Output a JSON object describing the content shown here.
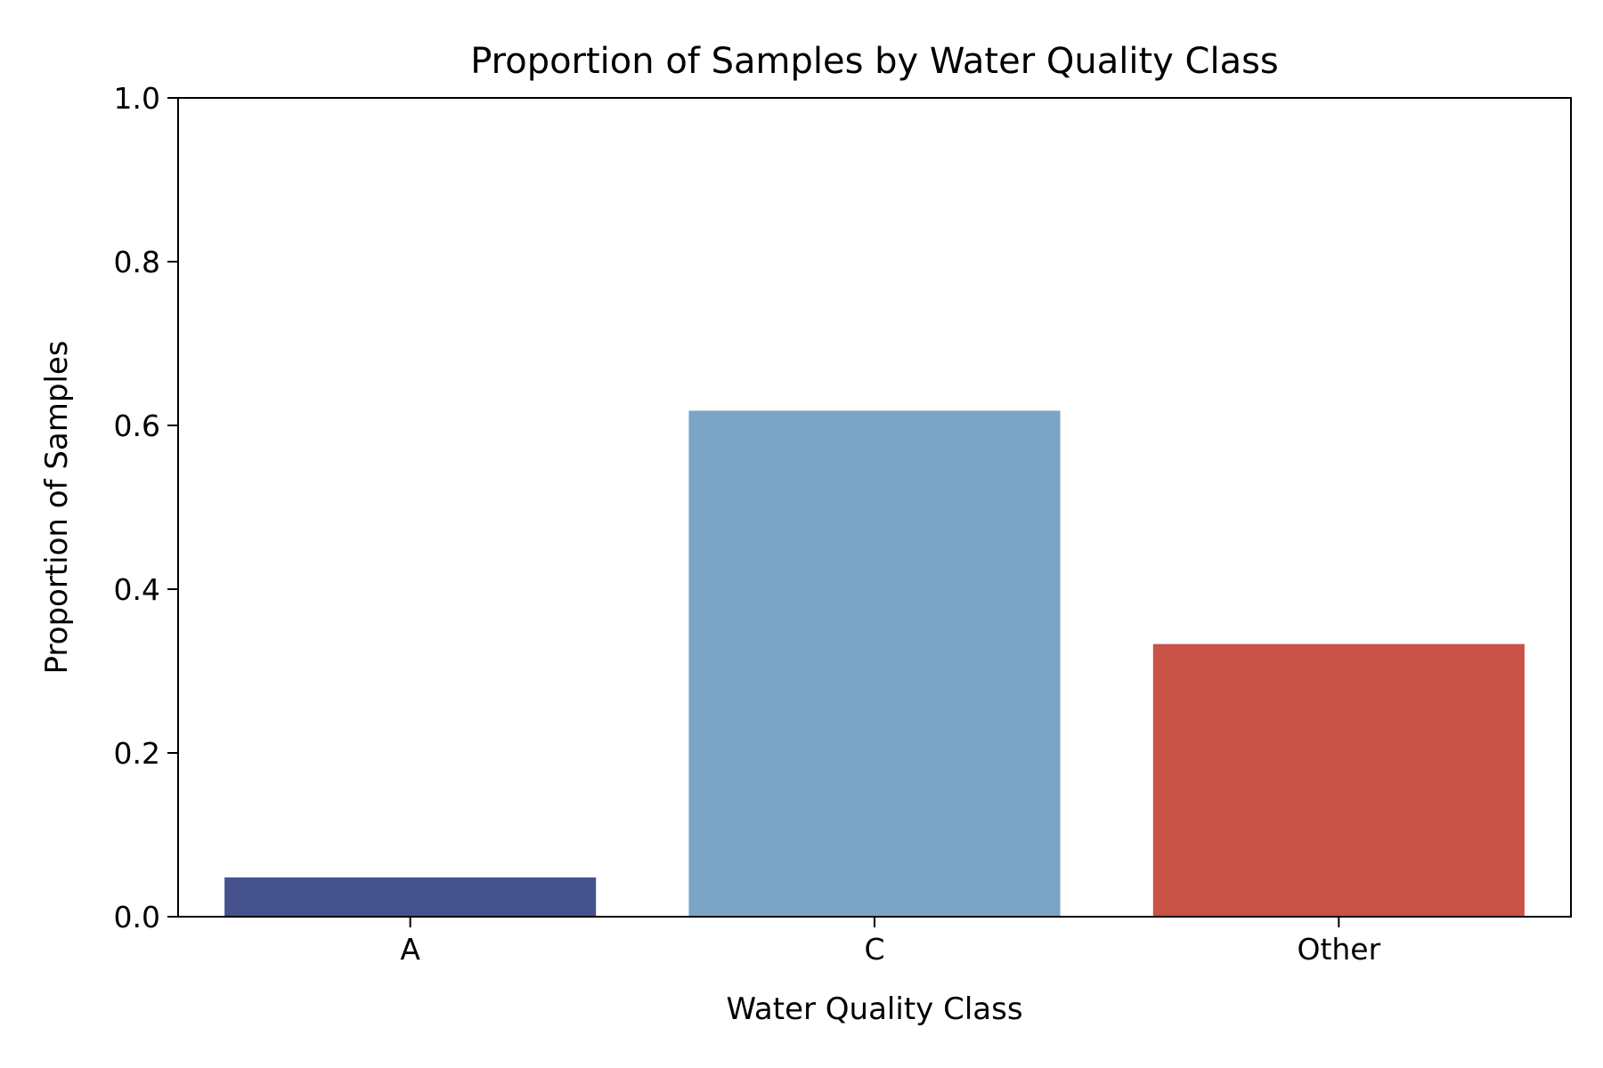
{
  "chart_data": {
    "type": "bar",
    "title": "Proportion of Samples by Water Quality Class",
    "xlabel": "Water Quality Class",
    "ylabel": "Proportion of Samples",
    "categories": [
      "A",
      "C",
      "Other"
    ],
    "values": [
      0.048,
      0.618,
      0.333
    ],
    "colors": [
      "#45528c",
      "#7ca4c4",
      "#c85245"
    ],
    "ylim": [
      0,
      1.0
    ],
    "yticks": [
      "0.0",
      "0.2",
      "0.4",
      "0.6",
      "0.8",
      "1.0"
    ],
    "grid": false,
    "legend": "none"
  }
}
